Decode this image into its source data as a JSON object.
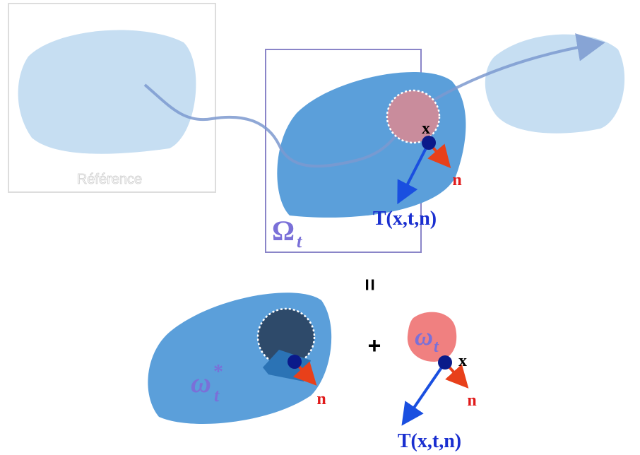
{
  "reference": {
    "label": "Référence"
  },
  "current": {
    "symbol": "Ω",
    "subscript": "t",
    "point": "x",
    "normal": "n",
    "traction": "T(x,t,n)"
  },
  "equals": "=",
  "plus": "+",
  "complement": {
    "symbol": "ω",
    "subscript": "t",
    "superscript": "*",
    "normal": "n"
  },
  "part": {
    "symbol": "ω",
    "subscript": "t",
    "point": "x",
    "normal": "n",
    "traction": "T(x,t,n)"
  }
}
